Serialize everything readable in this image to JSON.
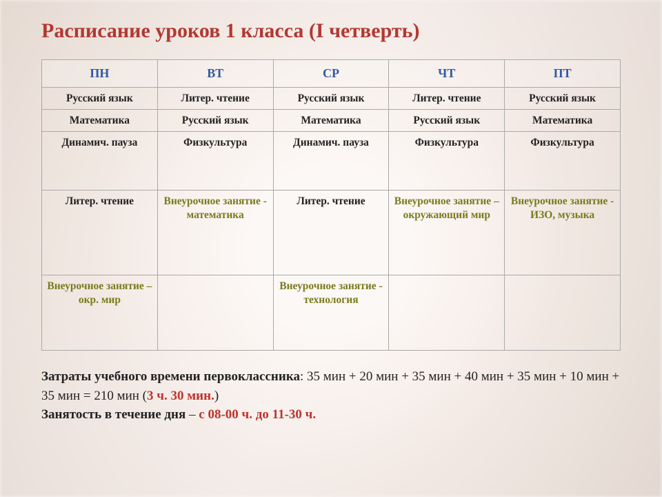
{
  "title": "Расписание уроков 1 класса (I четверть)",
  "days": [
    "ПН",
    "ВТ",
    "СР",
    "ЧТ",
    "ПТ"
  ],
  "rows": [
    [
      {
        "text": "Русский язык",
        "cls": ""
      },
      {
        "text": "Литер. чтение",
        "cls": ""
      },
      {
        "text": "Русский язык",
        "cls": ""
      },
      {
        "text": "Литер. чтение",
        "cls": ""
      },
      {
        "text": "Русский язык",
        "cls": ""
      }
    ],
    [
      {
        "text": "Математика",
        "cls": ""
      },
      {
        "text": "Русский язык",
        "cls": ""
      },
      {
        "text": "Математика",
        "cls": ""
      },
      {
        "text": "Русский язык",
        "cls": ""
      },
      {
        "text": "Математика",
        "cls": ""
      }
    ],
    [
      {
        "text": "Динамич. пауза",
        "cls": ""
      },
      {
        "text": "Физкультура",
        "cls": ""
      },
      {
        "text": "Динамич. пауза",
        "cls": ""
      },
      {
        "text": "Физкультура",
        "cls": ""
      },
      {
        "text": "Физкультура",
        "cls": ""
      }
    ],
    [
      {
        "text": "Литер. чтение",
        "cls": ""
      },
      {
        "text": "Внеурочное занятие - математика",
        "cls": "olive"
      },
      {
        "text": "Литер. чтение",
        "cls": ""
      },
      {
        "text": "Внеурочное занятие – окружающий мир",
        "cls": "olive"
      },
      {
        "text": "Внеурочное занятие - ИЗО, музыка",
        "cls": "olive"
      }
    ],
    [
      {
        "text": "Внеурочное занятие – окр. мир",
        "cls": "olive"
      },
      {
        "text": "",
        "cls": ""
      },
      {
        "text": "Внеурочное занятие - технология",
        "cls": "olive"
      },
      {
        "text": "",
        "cls": ""
      },
      {
        "text": "",
        "cls": ""
      }
    ]
  ],
  "footer": {
    "line1_label": "Затраты учебного времени первоклассника",
    "line1_calc": ": 35 мин + 20 мин + 35 мин + 40 мин + 35 мин + 10 мин + 35 мин = 210 мин (",
    "line1_result": "3 ч. 30 мин.",
    "line1_close": ")",
    "line2_label": "Занятость в течение дня",
    "line2_sep": " – ",
    "line2_value": "с 08-00 ч. до 11-30 ч."
  },
  "colors": {
    "title": "#b23832",
    "header": "#2e5aa0",
    "olive": "#7a7a1c",
    "red": "#c0332c",
    "border": "#a9a9a9"
  }
}
